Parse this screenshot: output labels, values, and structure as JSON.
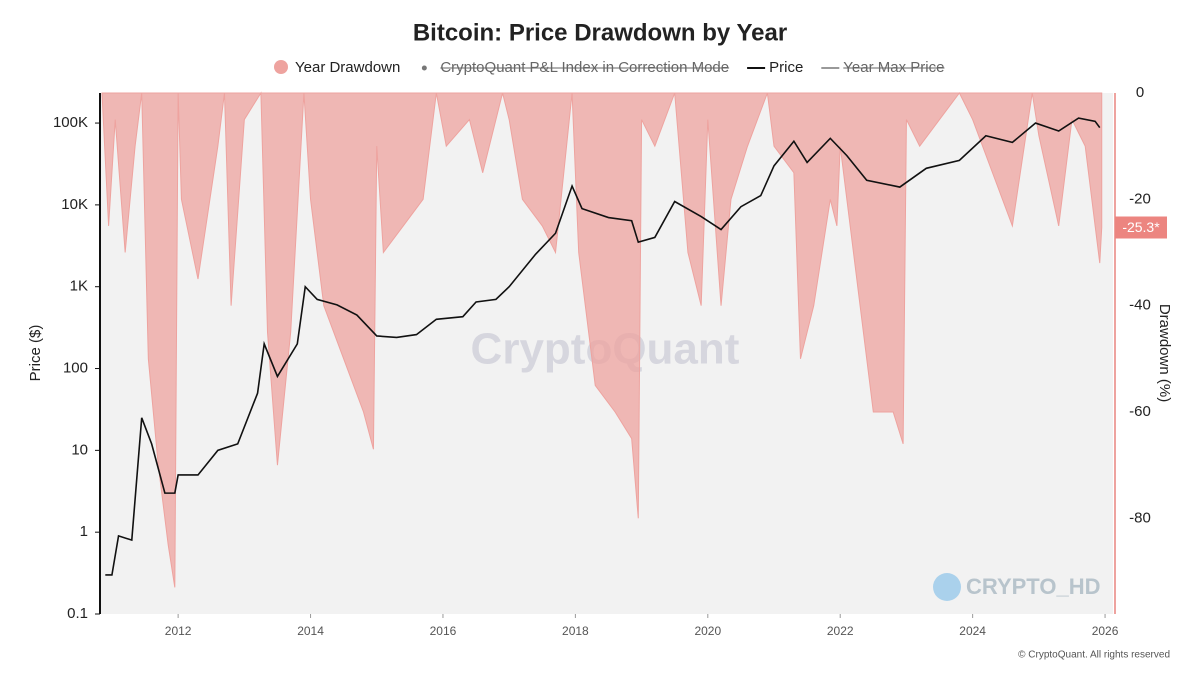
{
  "chart_data": {
    "type": "line",
    "title": "Bitcoin: Price Drawdown by Year",
    "ylabel": "Price ($)",
    "y2label": "Drawdown (%)",
    "watermark": "CryptoQuant",
    "badge": "CRYPTO_HD",
    "footer": "© CryptoQuant. All rights reserved",
    "log_y": true,
    "xlim": [
      2010.82,
      2026.12
    ],
    "xticks": [
      2012,
      2014,
      2016,
      2018,
      2020,
      2022,
      2024,
      2026
    ],
    "ylim": [
      0.1,
      233000
    ],
    "yticks": [
      0.1,
      1,
      10,
      100,
      {
        "value": 1000,
        "label": "1K"
      },
      {
        "value": 10000,
        "label": "10K"
      },
      {
        "value": 100000,
        "label": "100K"
      }
    ],
    "y2lim": [
      -98,
      0
    ],
    "y2ticks": [
      0,
      -20,
      -40,
      -60,
      -80
    ],
    "series": [
      {
        "name": "Year Drawdown",
        "color": "#eea39f",
        "kind": "area",
        "axis": "y2",
        "x": [
          2010.85,
          2010.95,
          2011.05,
          2011.2,
          2011.35,
          2011.45,
          2011.55,
          2011.7,
          2011.85,
          2011.95,
          2012.0,
          2012.05,
          2012.3,
          2012.6,
          2012.7,
          2012.8,
          2013.0,
          2013.25,
          2013.35,
          2013.5,
          2013.7,
          2013.9,
          2014.0,
          2014.2,
          2014.5,
          2014.8,
          2014.95,
          2015.0,
          2015.1,
          2015.4,
          2015.7,
          2015.9,
          2016.05,
          2016.4,
          2016.6,
          2016.9,
          2017.0,
          2017.2,
          2017.5,
          2017.7,
          2017.95,
          2018.05,
          2018.3,
          2018.6,
          2018.85,
          2018.95,
          2019.0,
          2019.2,
          2019.5,
          2019.7,
          2019.9,
          2020.0,
          2020.2,
          2020.35,
          2020.6,
          2020.9,
          2021.0,
          2021.3,
          2021.4,
          2021.6,
          2021.85,
          2021.95,
          2022.0,
          2022.3,
          2022.5,
          2022.8,
          2022.95,
          2023.0,
          2023.2,
          2023.5,
          2023.8,
          2024.0,
          2024.3,
          2024.6,
          2024.9,
          2025.0,
          2025.3,
          2025.5,
          2025.7,
          2025.85,
          2025.92,
          2025.95
        ],
        "values": [
          0,
          -25,
          -5,
          -30,
          -10,
          0,
          -50,
          -70,
          -85,
          -93,
          0,
          -20,
          -35,
          -10,
          0,
          -40,
          -5,
          0,
          -45,
          -70,
          -45,
          0,
          -20,
          -40,
          -50,
          -60,
          -67,
          -10,
          -30,
          -25,
          -20,
          0,
          -10,
          -5,
          -15,
          0,
          -5,
          -20,
          -25,
          -30,
          0,
          -30,
          -55,
          -60,
          -65,
          -80,
          -5,
          -10,
          0,
          -30,
          -40,
          -5,
          -40,
          -20,
          -10,
          0,
          -10,
          -15,
          -50,
          -40,
          -20,
          -25,
          -10,
          -40,
          -60,
          -60,
          -66,
          -5,
          -10,
          -5,
          0,
          -5,
          -15,
          -25,
          0,
          -8,
          -25,
          -5,
          -10,
          -25,
          -32,
          -25.3
        ]
      },
      {
        "name": "Price",
        "color": "#111111",
        "kind": "line",
        "x": [
          2010.9,
          2011.0,
          2011.1,
          2011.3,
          2011.45,
          2011.6,
          2011.8,
          2011.95,
          2012.0,
          2012.3,
          2012.6,
          2012.9,
          2013.2,
          2013.3,
          2013.5,
          2013.8,
          2013.92,
          2014.1,
          2014.4,
          2014.7,
          2015.0,
          2015.3,
          2015.6,
          2015.9,
          2016.3,
          2016.5,
          2016.8,
          2017.0,
          2017.4,
          2017.7,
          2017.95,
          2018.1,
          2018.5,
          2018.85,
          2018.95,
          2019.2,
          2019.5,
          2019.9,
          2020.2,
          2020.5,
          2020.8,
          2021.0,
          2021.3,
          2021.5,
          2021.85,
          2022.1,
          2022.4,
          2022.9,
          2023.3,
          2023.8,
          2024.2,
          2024.6,
          2024.95,
          2025.3,
          2025.6,
          2025.85,
          2025.92
        ],
        "values": [
          0.3,
          0.3,
          0.9,
          0.8,
          25,
          12,
          3,
          3,
          5,
          5,
          10,
          12,
          50,
          200,
          80,
          200,
          1000,
          700,
          600,
          450,
          250,
          240,
          260,
          400,
          430,
          650,
          700,
          1000,
          2500,
          4500,
          17000,
          9000,
          7000,
          6400,
          3500,
          4000,
          11000,
          7200,
          5000,
          9500,
          13000,
          30000,
          60000,
          33000,
          65000,
          40000,
          20000,
          16500,
          28000,
          35000,
          70000,
          58000,
          100000,
          80000,
          115000,
          105000,
          88000
        ]
      }
    ],
    "hidden_series": [
      {
        "name": "CryptoQuant P&L Index in Correction Mode",
        "color": "#777777"
      },
      {
        "name": "Year Max Price",
        "color": "#999999"
      }
    ],
    "annotations": [
      {
        "x": 2025.95,
        "y": -25.3,
        "label": "-25.3*"
      }
    ]
  }
}
